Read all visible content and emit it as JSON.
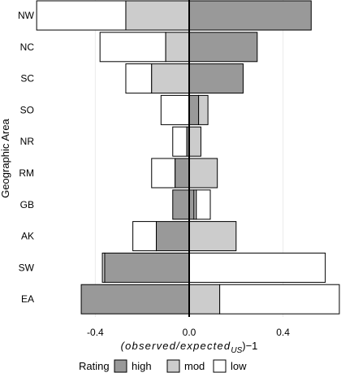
{
  "chart_data": {
    "type": "bar",
    "orientation": "horizontal",
    "stacked": "diverging",
    "categories": [
      "NW",
      "NC",
      "SC",
      "SO",
      "NR",
      "RM",
      "GB",
      "AK",
      "SW",
      "EA"
    ],
    "series": [
      {
        "name": "high",
        "color": "#999999",
        "segments": [
          [
            0.0,
            0.52
          ],
          [
            0.0,
            0.29
          ],
          [
            0.0,
            0.23
          ],
          [
            0.0,
            0.04
          ],
          [
            -0.01,
            0.0
          ],
          [
            -0.06,
            0.0
          ],
          [
            -0.07,
            0.02
          ],
          [
            -0.14,
            0.0
          ],
          [
            -0.36,
            0.0
          ],
          [
            -0.46,
            0.0
          ]
        ]
      },
      {
        "name": "mod",
        "color": "#cccccc",
        "segments": [
          [
            -0.27,
            0.0
          ],
          [
            -0.1,
            0.0
          ],
          [
            -0.16,
            0.0
          ],
          [
            0.04,
            0.08
          ],
          [
            0.0,
            0.05
          ],
          [
            0.0,
            0.12
          ],
          [
            0.02,
            0.03
          ],
          [
            0.0,
            0.2
          ],
          [
            -0.37,
            -0.36
          ],
          [
            0.0,
            0.13
          ]
        ]
      },
      {
        "name": "low",
        "color": "#ffffff",
        "segments": [
          [
            -0.65,
            -0.27
          ],
          [
            -0.38,
            -0.1
          ],
          [
            -0.27,
            -0.16
          ],
          [
            -0.12,
            0.0
          ],
          [
            -0.07,
            -0.01
          ],
          [
            -0.16,
            -0.06
          ],
          [
            0.03,
            0.09
          ],
          [
            -0.24,
            -0.14
          ],
          [
            0.0,
            0.58
          ],
          [
            0.13,
            0.64
          ]
        ]
      }
    ],
    "xlim": [
      -0.65,
      0.65
    ],
    "xticks": [
      -0.4,
      0.0,
      0.4
    ],
    "xtick_labels": [
      "-0.4",
      "0.0",
      "0.4"
    ],
    "xlabel": "(observed/expected",
    "xlabel_subscript": "US",
    "xlabel_suffix": ")−1",
    "ylabel": "Geographic Area",
    "legend_title": "Rating",
    "legend_position": "bottom",
    "grid": "vertical"
  }
}
